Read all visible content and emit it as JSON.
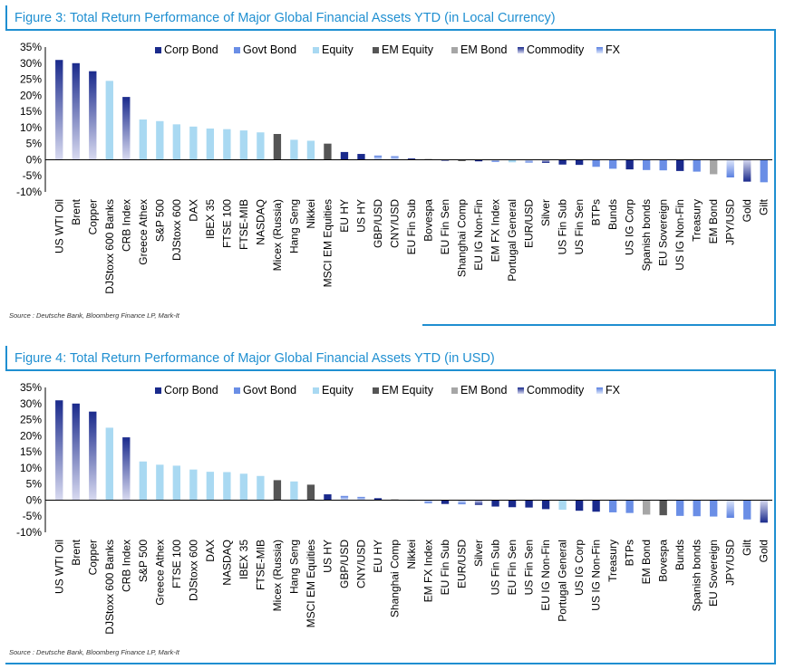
{
  "legend_items": [
    {
      "label": "Corp Bond",
      "color": "#1a2a8c",
      "grad": false
    },
    {
      "label": "Govt Bond",
      "color": "#6a8ee6",
      "grad": false
    },
    {
      "label": "Equity",
      "color": "#a9d9f2",
      "grad": false
    },
    {
      "label": "EM Equity",
      "color": "#555555",
      "grad": false
    },
    {
      "label": "EM Bond",
      "color": "#a6a6a6",
      "grad": false
    },
    {
      "label": "Commodity",
      "color": "#1a2a8c",
      "grad": true
    },
    {
      "label": "FX",
      "color": "#6a8ee6",
      "grad": true
    }
  ],
  "colors": {
    "Corp Bond": "#1a2a8c",
    "Govt Bond": "#6a8ee6",
    "Equity": "#a9d9f2",
    "EM Equity": "#555555",
    "EM Bond": "#a6a6a6",
    "Commodity": "#1a2a8c",
    "FX": "#6a8ee6",
    "accent": "#1f8fd1"
  },
  "chart_data": [
    {
      "type": "bar",
      "title": "Figure 3: Total Return Performance of Major Global Financial Assets YTD (in Local Currency)",
      "source": "Source : Deutsche Bank, Bloomberg Finance LP, Mark-It",
      "ylim": [
        -10,
        35
      ],
      "yticks": [
        "35%",
        "30%",
        "25%",
        "20%",
        "15%",
        "10%",
        "5%",
        "0%",
        "-5%",
        "-10%"
      ],
      "legend_position": "top",
      "categories": [
        "US WTI Oil",
        "Brent",
        "Copper",
        "DJStoxx 600 Banks",
        "CRB Index",
        "Greece Athex",
        "S&P 500",
        "DJStoxx 600",
        "DAX",
        "IBEX 35",
        "FTSE 100",
        "FTSE-MIB",
        "NASDAQ",
        "Micex (Russia)",
        "Hang Seng",
        "Nikkei",
        "MSCI EM Equities",
        "EU HY",
        "US HY",
        "GBP/USD",
        "CNY/USD",
        "EU Fin Sub",
        "Bovespa",
        "EU Fin Sen",
        "Shanghai Comp",
        "EU IG Non-Fin",
        "EM FX Index",
        "Portugal General",
        "EUR/USD",
        "Silver",
        "US Fin Sub",
        "US Fin Sen",
        "BTPs",
        "Bunds",
        "US IG Corp",
        "Spanish bonds",
        "EU Sovereign",
        "US IG Non-Fin",
        "Treasury",
        "EM Bond",
        "JPY/USD",
        "Gold",
        "Gilt"
      ],
      "values": [
        31,
        30,
        27.5,
        24.5,
        19.5,
        12.5,
        12,
        11,
        10.3,
        9.7,
        9.5,
        9.1,
        8.5,
        8,
        6.2,
        5.9,
        5,
        2.4,
        1.8,
        1.3,
        1.1,
        0.4,
        0.2,
        -0.3,
        -0.4,
        -0.5,
        -0.7,
        -0.8,
        -0.9,
        -1,
        -1.5,
        -1.6,
        -2.2,
        -2.8,
        -3,
        -3.2,
        -3.3,
        -3.5,
        -3.7,
        -4.5,
        -5.5,
        -6.8,
        -7
      ],
      "groups": [
        "Commodity",
        "Commodity",
        "Commodity",
        "Equity",
        "Commodity",
        "Equity",
        "Equity",
        "Equity",
        "Equity",
        "Equity",
        "Equity",
        "Equity",
        "Equity",
        "EM Equity",
        "Equity",
        "Equity",
        "EM Equity",
        "Corp Bond",
        "Corp Bond",
        "FX",
        "FX",
        "Corp Bond",
        "EM Equity",
        "Corp Bond",
        "EM Equity",
        "Corp Bond",
        "FX",
        "Equity",
        "FX",
        "Commodity",
        "Corp Bond",
        "Corp Bond",
        "Govt Bond",
        "Govt Bond",
        "Corp Bond",
        "Govt Bond",
        "Govt Bond",
        "Corp Bond",
        "Govt Bond",
        "EM Bond",
        "FX",
        "Commodity",
        "Govt Bond"
      ]
    },
    {
      "type": "bar",
      "title": "Figure 4: Total Return Performance of Major Global Financial Assets YTD (in USD)",
      "source": "Source : Deutsche Bank, Bloomberg Finance LP, Mark-It",
      "ylim": [
        -10,
        35
      ],
      "yticks": [
        "35%",
        "30%",
        "25%",
        "20%",
        "15%",
        "10%",
        "5%",
        "0%",
        "-5%",
        "-10%"
      ],
      "legend_position": "top",
      "categories": [
        "US WTI Oil",
        "Brent",
        "Copper",
        "DJStoxx 600 Banks",
        "CRB Index",
        "S&P 500",
        "Greece Athex",
        "FTSE 100",
        "DJStoxx 600",
        "DAX",
        "NASDAQ",
        "IBEX 35",
        "FTSE-MIB",
        "Micex (Russia)",
        "Hang Seng",
        "MSCI EM Equities",
        "US HY",
        "GBP/USD",
        "CNY/USD",
        "EU HY",
        "Shanghai Comp",
        "Nikkei",
        "EM FX Index",
        "EU Fin Sub",
        "EUR/USD",
        "Silver",
        "US Fin Sub",
        "EU Fin Sen",
        "US Fin Sen",
        "EU IG Non-Fin",
        "Portugal General",
        "US IG Corp",
        "US IG Non-Fin",
        "Treasury",
        "BTPs",
        "EM Bond",
        "Bovespa",
        "Bunds",
        "Spanish bonds",
        "EU Sovereign",
        "JPY/USD",
        "Gilt",
        "Gold"
      ],
      "values": [
        31,
        30,
        27.5,
        22.5,
        19.5,
        12,
        11,
        10.7,
        9.5,
        8.8,
        8.7,
        8.2,
        7.5,
        6.2,
        5.8,
        4.8,
        1.8,
        1.3,
        1,
        0.6,
        0.2,
        0,
        -1,
        -1.2,
        -1.3,
        -1.5,
        -2,
        -2.2,
        -2.3,
        -2.8,
        -3,
        -3.3,
        -3.6,
        -3.8,
        -4,
        -4.5,
        -4.7,
        -4.9,
        -5,
        -5.1,
        -5.5,
        -6,
        -7
      ],
      "groups": [
        "Commodity",
        "Commodity",
        "Commodity",
        "Equity",
        "Commodity",
        "Equity",
        "Equity",
        "Equity",
        "Equity",
        "Equity",
        "Equity",
        "Equity",
        "Equity",
        "EM Equity",
        "Equity",
        "EM Equity",
        "Corp Bond",
        "FX",
        "FX",
        "Corp Bond",
        "EM Equity",
        "Equity",
        "FX",
        "Corp Bond",
        "FX",
        "Commodity",
        "Corp Bond",
        "Corp Bond",
        "Corp Bond",
        "Corp Bond",
        "Equity",
        "Corp Bond",
        "Corp Bond",
        "Govt Bond",
        "Govt Bond",
        "EM Bond",
        "EM Equity",
        "Govt Bond",
        "Govt Bond",
        "Govt Bond",
        "FX",
        "Govt Bond",
        "Commodity"
      ]
    }
  ]
}
